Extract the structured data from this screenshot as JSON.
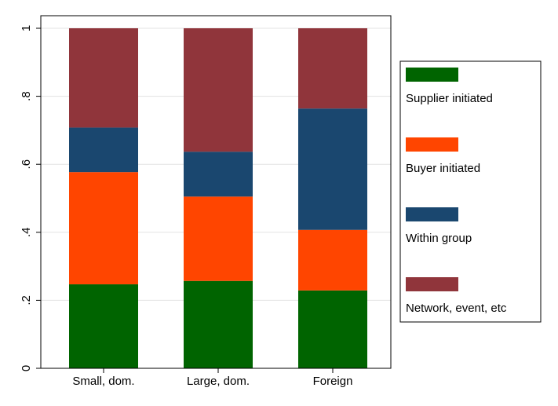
{
  "chart_data": {
    "type": "bar",
    "stacked": true,
    "categories": [
      "Small, dom.",
      "Large, dom.",
      "Foreign"
    ],
    "series": [
      {
        "name": "Supplier initiated",
        "color": "#006400",
        "values": [
          0.247,
          0.257,
          0.229
        ]
      },
      {
        "name": "Buyer initiated",
        "color": "#FF4500",
        "values": [
          0.33,
          0.248,
          0.178
        ]
      },
      {
        "name": "Within group",
        "color": "#1A476F",
        "values": [
          0.131,
          0.132,
          0.357
        ]
      },
      {
        "name": "Network, event, etc",
        "color": "#90353B",
        "values": [
          0.292,
          0.363,
          0.236
        ]
      }
    ],
    "ylim": [
      0,
      1
    ],
    "yticks": [
      0,
      0.2,
      0.4,
      0.6,
      0.8,
      1
    ],
    "ytick_labels": [
      "0",
      ".2",
      ".4",
      ".6",
      ".8",
      "1"
    ],
    "grid": true,
    "legend_position": "right",
    "title": "",
    "xlabel": "",
    "ylabel": ""
  }
}
